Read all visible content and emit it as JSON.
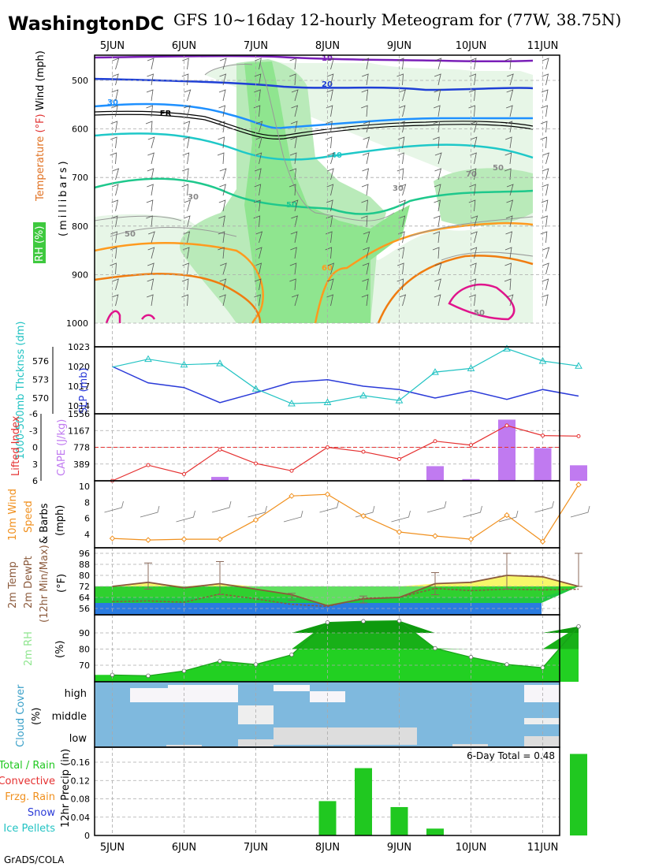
{
  "header": {
    "location": "WashingtonDC",
    "subtitle": "GFS 10~16day 12-hourly Meteogram for (77W, 38.75N)",
    "footer": "GrADS/COLA"
  },
  "dates": [
    "5JUN",
    "6JUN",
    "7JUN",
    "8JUN",
    "9JUN",
    "10JUN",
    "11JUN"
  ],
  "colors": {
    "rh_dark": "#3ec93e",
    "rh_mid": "#8fe58f",
    "rh_light": "#e7f6e7",
    "temp_purple": "#7a1fb8",
    "temp_blue": "#1e3fd6",
    "temp_sky": "#1e90ff",
    "temp_cyan": "#1ec8c8",
    "temp_green": "#1ec88c",
    "temp_orange": "#ff9a1e",
    "temp_pink": "#e0148c",
    "slp": "#2a3ad8",
    "thickness": "#22c3c3",
    "lifted": "#e53030",
    "cape": "#c07af0",
    "wind10m": "#f0901e",
    "precip": "#20c820",
    "cloud": "#7fb9de"
  },
  "chart_data": [
    {
      "type": "heatmap",
      "name": "upper-air",
      "ylabel_parts": [
        "Temperature",
        " (°F)",
        " Wind",
        " (mph)"
      ],
      "ylabel2": "(millibars)",
      "rh_label": "RH (%)",
      "y_ticks": [
        500,
        600,
        700,
        800,
        900,
        1000
      ],
      "ylim": [
        1000,
        460
      ],
      "contour_labels": [
        "10",
        "20",
        "30",
        "40",
        "50",
        "60",
        "FR",
        "70",
        "50",
        "30",
        "30",
        "50",
        "50"
      ]
    },
    {
      "type": "line",
      "name": "slp-thickness",
      "y1label": "1000-500mb Thcknss (dm)",
      "y1_ticks": [
        570,
        573,
        576
      ],
      "y2label": "SLP (mb)",
      "y2_ticks": [
        1014,
        1017,
        1020,
        1023
      ],
      "x": [
        0,
        0.5,
        1,
        1.5,
        2,
        2.5,
        3,
        3.5,
        4,
        4.5,
        5,
        5.5,
        6,
        6.5
      ],
      "slp": [
        1020,
        1017.5,
        1016.8,
        1014.5,
        1016,
        1017.6,
        1018,
        1017,
        1016.5,
        1015.2,
        1016.3,
        1015,
        1016.5,
        1015.5
      ],
      "thickness": [
        575.0,
        576.3,
        575.4,
        575.6,
        571.5,
        569.1,
        569.3,
        570.4,
        569.6,
        574.2,
        574.8,
        578.0,
        576.0,
        575.2
      ]
    },
    {
      "type": "bar",
      "name": "lifted-cape",
      "y1label": "Lifted Index",
      "y1_ticks": [
        -6,
        -3,
        0,
        3,
        6
      ],
      "y2label": "CAPE (J/kg)",
      "y2_ticks": [
        389,
        778,
        1167,
        1556
      ],
      "x": [
        0,
        0.5,
        1,
        1.5,
        2,
        2.5,
        3,
        3.5,
        4,
        4.5,
        5,
        5.5,
        6,
        6.5
      ],
      "lifted_index": [
        6,
        3.2,
        4.8,
        0.4,
        2.9,
        4.2,
        0,
        0.8,
        2.1,
        -1.1,
        -0.4,
        -3.9,
        -2.1,
        -2.0
      ],
      "cape": [
        0,
        0,
        0,
        90,
        0,
        0,
        0,
        0,
        0,
        340,
        40,
        1420,
        760,
        360
      ]
    },
    {
      "type": "line",
      "name": "wind10m",
      "ylabel": "10m Wind Speed & Barbs (mph)",
      "y_ticks": [
        4,
        6,
        8,
        10
      ],
      "x": [
        0,
        0.5,
        1,
        1.5,
        2,
        2.5,
        3,
        3.5,
        4,
        4.5,
        5,
        5.5,
        6,
        6.5
      ],
      "speed": [
        3.5,
        3.3,
        3.4,
        3.4,
        5.8,
        8.8,
        9.0,
        6.3,
        4.3,
        3.8,
        3.4,
        6.4,
        3.1,
        10.2
      ]
    },
    {
      "type": "area",
      "name": "temperature",
      "ylabel": "2m Temp 2m Dew Pt (12hr Min/Max) (°F)",
      "y_ticks": [
        56,
        64,
        72,
        80,
        88,
        96
      ],
      "x": [
        0,
        0.5,
        1,
        1.5,
        2,
        2.5,
        3,
        3.5,
        4,
        4.5,
        5,
        5.5,
        6,
        6.5
      ],
      "temp": [
        72,
        75,
        71,
        74,
        70,
        66,
        58,
        63,
        64,
        74,
        75,
        80,
        79,
        72
      ],
      "dewpt": [
        61,
        61.5,
        60.5,
        66.5,
        63,
        59,
        57.5,
        63.5,
        64,
        70.5,
        69,
        70,
        69.5,
        70
      ],
      "tmax": [
        84,
        89,
        74,
        90,
        74,
        67,
        60,
        65,
        65,
        82,
        76,
        96,
        80,
        96
      ],
      "tmin": [
        61,
        70,
        64,
        66,
        63,
        62,
        56,
        60,
        61,
        66,
        67,
        70,
        66,
        72
      ]
    },
    {
      "type": "area",
      "name": "rh2m",
      "ylabel": "2m RH",
      "units": "(%)",
      "y_ticks": [
        70,
        80,
        90
      ],
      "x": [
        0,
        0.5,
        1,
        1.5,
        2,
        2.5,
        3,
        3.5,
        4,
        4.5,
        5,
        5.5,
        6,
        6.5
      ],
      "rh": [
        64,
        63.5,
        66.5,
        72.5,
        70.5,
        76.5,
        96.5,
        97.2,
        97.5,
        80.5,
        75,
        70.5,
        68.5,
        94
      ]
    },
    {
      "type": "heatmap",
      "name": "cloud-cover",
      "ylabel": "Cloud Cover",
      "units": "(%)",
      "levels": [
        "high",
        "middle",
        "low"
      ]
    },
    {
      "type": "bar",
      "name": "precip",
      "ylabel": "12hr Precip (in)",
      "y_ticks": [
        0,
        0.04,
        0.08,
        0.12,
        0.16
      ],
      "legend": [
        "Total / Rain",
        "Convective",
        "Frzg. Rain",
        "Snow",
        "Ice Pellets"
      ],
      "total_text": "6-Day Total = 0.48",
      "x": [
        0,
        0.5,
        1,
        1.5,
        2,
        2.5,
        3,
        3.5,
        4,
        4.5,
        5,
        5.5,
        6,
        6.5
      ],
      "values": [
        0,
        0,
        0,
        0,
        0,
        0,
        0.075,
        0.147,
        0.062,
        0.015,
        0,
        0,
        0,
        0.178
      ]
    }
  ]
}
